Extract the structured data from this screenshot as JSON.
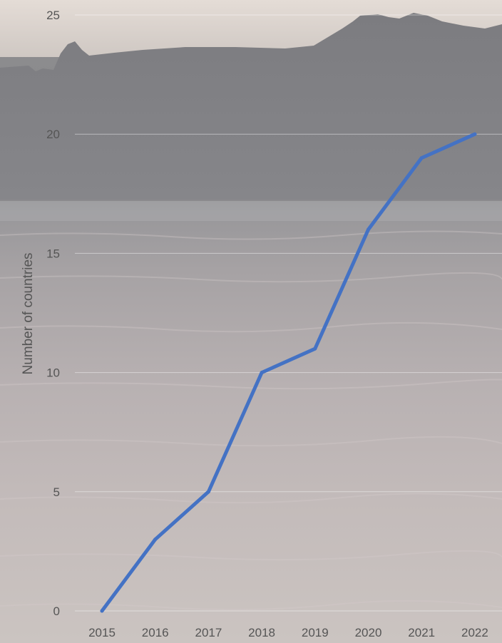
{
  "chart_data": {
    "type": "line",
    "categories": [
      "2015",
      "2016",
      "2017",
      "2018",
      "2019",
      "2020",
      "2021",
      "2022"
    ],
    "series": [
      {
        "values": [
          0,
          3,
          5,
          10,
          11,
          16,
          19,
          20
        ]
      }
    ],
    "title": "",
    "xlabel": "",
    "ylabel": "Number of countries",
    "ylim": [
      0,
      25
    ],
    "yticks": [
      "0",
      "5",
      "10",
      "15",
      "20",
      "25"
    ],
    "grid": true,
    "legend": "none",
    "colors": {
      "line": "#4472C4",
      "tick_text": "#555555",
      "gridline": "#ffffff"
    },
    "background": "photo-of-city-waterfront-at-dusk"
  }
}
